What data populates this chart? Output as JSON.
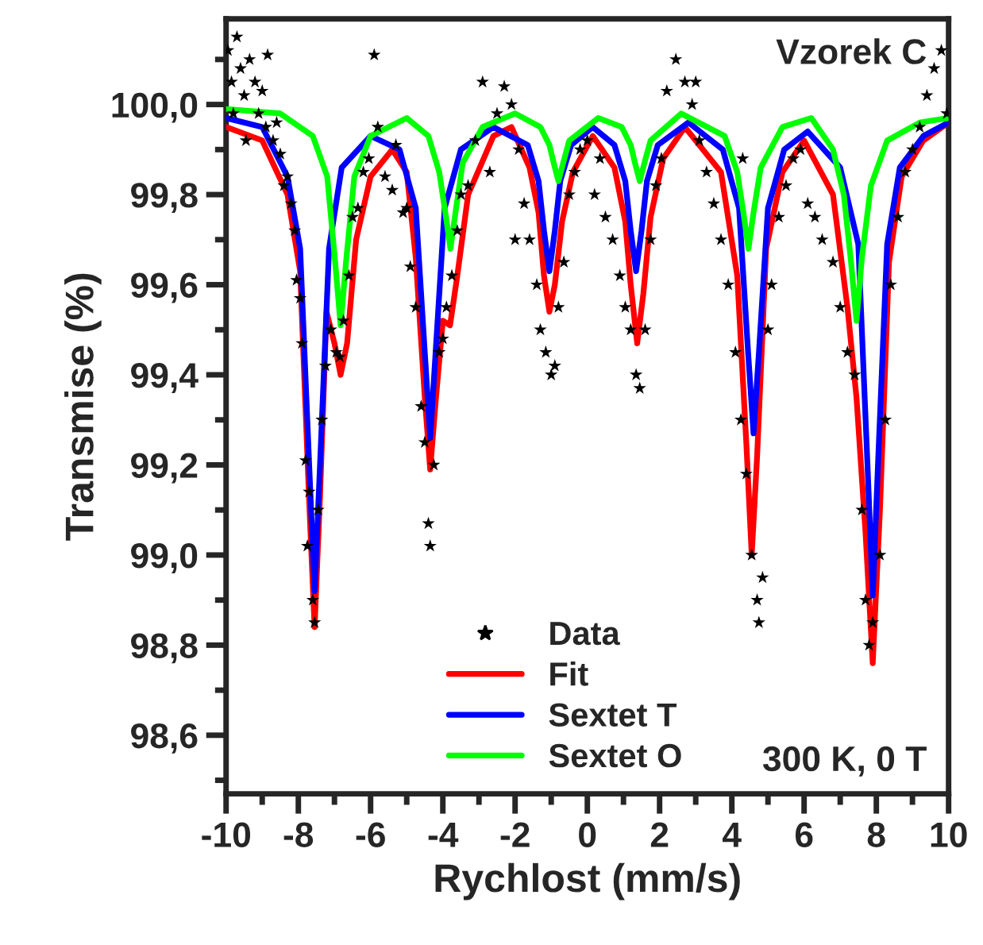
{
  "chart_data": {
    "type": "line",
    "xlabel": "Rychlost (mm/s)",
    "ylabel": "Transmise (%)",
    "annotations": [
      "Vzorek C",
      "300 K, 0 T"
    ],
    "xlim": [
      -10,
      10
    ],
    "xticks": [
      -10,
      {
        "value": -9,
        "label": null
      },
      -8,
      {
        "value": -7,
        "label": null
      },
      -6,
      {
        "value": -5,
        "label": null
      },
      -4,
      {
        "value": -3,
        "label": null
      },
      -2,
      {
        "value": -1,
        "label": null
      },
      0,
      {
        "value": 1,
        "label": null
      },
      2,
      {
        "value": 3,
        "label": null
      },
      4,
      {
        "value": 5,
        "label": null
      },
      6,
      {
        "value": 7,
        "label": null
      },
      8,
      {
        "value": 9,
        "label": null
      },
      10
    ],
    "ylim": [
      98.47,
      100.19
    ],
    "yticks": [
      {
        "value": 98.5,
        "label": null
      },
      {
        "value": 98.6,
        "label": "98,6"
      },
      {
        "value": 98.7,
        "label": null
      },
      {
        "value": 98.8,
        "label": "98,8"
      },
      {
        "value": 98.9,
        "label": null
      },
      {
        "value": 99.0,
        "label": "99,0"
      },
      {
        "value": 99.1,
        "label": null
      },
      {
        "value": 99.2,
        "label": "99,2"
      },
      {
        "value": 99.3,
        "label": null
      },
      {
        "value": 99.4,
        "label": "99,4"
      },
      {
        "value": 99.5,
        "label": null
      },
      {
        "value": 99.6,
        "label": "99,6"
      },
      {
        "value": 99.7,
        "label": null
      },
      {
        "value": 99.8,
        "label": "99,8"
      },
      {
        "value": 99.9,
        "label": null
      },
      {
        "value": 100.0,
        "label": "100,0"
      },
      {
        "value": 100.1,
        "label": null
      }
    ],
    "grid": false,
    "legend": "bottom",
    "series": [
      {
        "name": "Data",
        "type": "scatter",
        "marker": "star",
        "color": "#000000",
        "x": [
          -9.95,
          -9.85,
          -9.8,
          -9.7,
          -9.6,
          -9.5,
          -9.45,
          -9.35,
          -9.2,
          -9.1,
          -9.0,
          -8.9,
          -8.85,
          -8.7,
          -8.6,
          -8.5,
          -8.4,
          -8.3,
          -8.2,
          -8.1,
          -8.05,
          -7.95,
          -7.9,
          -7.8,
          -7.75,
          -7.7,
          -7.6,
          -7.55,
          -7.45,
          -7.35,
          -7.25,
          -7.1,
          -6.95,
          -6.85,
          -6.75,
          -6.6,
          -6.5,
          -6.35,
          -6.2,
          -6.05,
          -5.9,
          -5.8,
          -5.6,
          -5.4,
          -5.3,
          -5.1,
          -5.0,
          -4.9,
          -4.75,
          -4.6,
          -4.5,
          -4.4,
          -4.35,
          -4.25,
          -4.1,
          -4.0,
          -3.9,
          -3.75,
          -3.6,
          -3.5,
          -3.3,
          -3.1,
          -2.9,
          -2.7,
          -2.5,
          -2.3,
          -2.1,
          -2.0,
          -1.9,
          -1.75,
          -1.6,
          -1.4,
          -1.3,
          -1.15,
          -1.0,
          -0.9,
          -0.8,
          -0.65,
          -0.5,
          -0.35,
          -0.2,
          0.0,
          0.2,
          0.35,
          0.5,
          0.7,
          0.9,
          1.05,
          1.2,
          1.35,
          1.45,
          1.6,
          1.75,
          1.9,
          2.05,
          2.2,
          2.45,
          2.7,
          2.9,
          3.0,
          3.1,
          3.3,
          3.5,
          3.7,
          3.9,
          4.1,
          4.25,
          4.3,
          4.4,
          4.55,
          4.7,
          4.75,
          4.85,
          5.0,
          5.1,
          5.3,
          5.5,
          5.7,
          5.9,
          6.1,
          6.3,
          6.5,
          6.8,
          7.0,
          7.2,
          7.4,
          7.6,
          7.7,
          7.8,
          7.9,
          8.1,
          8.25,
          8.4,
          8.6,
          8.8,
          9.0,
          9.2,
          9.4,
          9.6,
          9.8,
          9.95
        ],
        "values": [
          100.12,
          100.05,
          99.98,
          100.15,
          100.08,
          100.02,
          99.92,
          100.1,
          100.05,
          99.98,
          100.03,
          99.95,
          100.11,
          99.92,
          99.96,
          99.89,
          99.82,
          99.84,
          99.78,
          99.72,
          99.61,
          99.57,
          99.47,
          99.21,
          99.02,
          99.14,
          98.9,
          98.85,
          99.1,
          99.3,
          99.42,
          99.5,
          99.45,
          99.44,
          99.52,
          99.62,
          99.75,
          99.77,
          99.85,
          99.88,
          100.11,
          99.95,
          99.84,
          99.81,
          99.91,
          99.76,
          99.77,
          99.64,
          99.55,
          99.33,
          99.25,
          99.07,
          99.02,
          99.2,
          99.45,
          99.48,
          99.55,
          99.62,
          99.72,
          99.8,
          99.82,
          99.92,
          100.05,
          99.85,
          99.98,
          100.04,
          100.0,
          99.7,
          99.9,
          99.78,
          99.7,
          99.6,
          99.5,
          99.45,
          99.4,
          99.42,
          99.55,
          99.65,
          99.8,
          99.85,
          99.9,
          99.92,
          99.8,
          99.88,
          99.75,
          99.7,
          99.62,
          99.55,
          99.5,
          99.4,
          99.37,
          99.5,
          99.7,
          99.82,
          99.88,
          100.03,
          100.1,
          100.05,
          100.0,
          100.05,
          99.92,
          99.85,
          99.78,
          99.7,
          99.6,
          99.45,
          99.3,
          99.88,
          99.18,
          99.0,
          98.9,
          98.85,
          98.95,
          99.5,
          99.6,
          99.75,
          99.82,
          99.88,
          99.9,
          99.78,
          99.75,
          99.7,
          99.65,
          99.55,
          99.45,
          99.4,
          99.1,
          98.9,
          98.8,
          98.85,
          99.0,
          99.3,
          99.6,
          99.75,
          99.85,
          99.9,
          99.95,
          100.02,
          100.08,
          100.12,
          99.98
        ]
      },
      {
        "name": "Fit",
        "marker": "none",
        "color": "#ff0000",
        "x": [
          -10,
          -9,
          -8.3,
          -7.95,
          -7.7,
          -7.55,
          -7.4,
          -7.22,
          -7.0,
          -6.83,
          -6.65,
          -6.4,
          -6.0,
          -5.4,
          -5.0,
          -4.75,
          -4.5,
          -4.35,
          -4.2,
          -4.0,
          -3.8,
          -3.6,
          -3.3,
          -2.6,
          -2.1,
          -1.6,
          -1.35,
          -1.2,
          -1.05,
          -0.9,
          -0.7,
          -0.4,
          0.15,
          0.75,
          1.05,
          1.2,
          1.38,
          1.55,
          1.75,
          2.1,
          2.7,
          3.7,
          4.15,
          4.4,
          4.55,
          4.7,
          4.95,
          5.4,
          6.0,
          6.8,
          7.2,
          7.45,
          7.7,
          7.9,
          8.1,
          8.35,
          8.7,
          9.3,
          10
        ],
        "values": [
          99.95,
          99.92,
          99.8,
          99.63,
          99.12,
          98.84,
          99.13,
          99.54,
          99.47,
          99.4,
          99.47,
          99.7,
          99.84,
          99.9,
          99.85,
          99.66,
          99.35,
          99.19,
          99.34,
          99.52,
          99.51,
          99.62,
          99.8,
          99.93,
          99.95,
          99.86,
          99.76,
          99.62,
          99.54,
          99.6,
          99.74,
          99.85,
          99.93,
          99.86,
          99.74,
          99.6,
          99.47,
          99.58,
          99.75,
          99.88,
          99.95,
          99.85,
          99.62,
          99.25,
          99.0,
          99.22,
          99.68,
          99.85,
          99.92,
          99.8,
          99.55,
          99.35,
          99.05,
          98.76,
          99.1,
          99.65,
          99.84,
          99.92,
          99.96
        ]
      },
      {
        "name": "Sextet T",
        "marker": "none",
        "color": "#0000ff",
        "x": [
          -10,
          -9,
          -8.3,
          -7.95,
          -7.7,
          -7.55,
          -7.4,
          -7.15,
          -6.8,
          -6.0,
          -5.2,
          -4.75,
          -4.5,
          -4.35,
          -4.2,
          -3.95,
          -3.5,
          -2.6,
          -1.65,
          -1.35,
          -1.2,
          -1.05,
          -0.9,
          -0.75,
          -0.45,
          0.15,
          0.75,
          1.05,
          1.2,
          1.35,
          1.5,
          1.65,
          1.95,
          2.8,
          3.75,
          4.2,
          4.45,
          4.6,
          4.75,
          5.0,
          5.45,
          6.1,
          7.0,
          7.5,
          7.75,
          7.9,
          8.05,
          8.3,
          8.65,
          9.3,
          10
        ],
        "values": [
          99.97,
          99.95,
          99.84,
          99.68,
          99.2,
          98.92,
          99.2,
          99.68,
          99.86,
          99.93,
          99.9,
          99.77,
          99.45,
          99.26,
          99.45,
          99.77,
          99.9,
          99.95,
          99.91,
          99.83,
          99.72,
          99.63,
          99.72,
          99.83,
          99.91,
          99.95,
          99.91,
          99.83,
          99.72,
          99.63,
          99.72,
          99.83,
          99.91,
          99.96,
          99.9,
          99.77,
          99.45,
          99.27,
          99.45,
          99.77,
          99.9,
          99.94,
          99.86,
          99.69,
          99.21,
          98.91,
          99.21,
          99.69,
          99.86,
          99.93,
          99.96
        ]
      },
      {
        "name": "Sextet O",
        "marker": "none",
        "color": "#00ff00",
        "x": [
          -10,
          -8.5,
          -7.6,
          -7.2,
          -6.98,
          -6.83,
          -6.68,
          -6.45,
          -6.0,
          -5.0,
          -4.4,
          -4.1,
          -3.93,
          -3.79,
          -3.65,
          -3.45,
          -2.9,
          -2.0,
          -1.3,
          -1.05,
          -0.93,
          -0.8,
          -0.67,
          -0.5,
          0.3,
          0.95,
          1.2,
          1.32,
          1.45,
          1.58,
          1.75,
          2.6,
          3.8,
          4.15,
          4.32,
          4.46,
          4.6,
          4.8,
          5.4,
          6.2,
          6.8,
          7.1,
          7.3,
          7.45,
          7.6,
          7.85,
          8.3,
          9.2,
          10
        ],
        "values": [
          99.99,
          99.98,
          99.93,
          99.84,
          99.65,
          99.51,
          99.65,
          99.84,
          99.93,
          99.97,
          99.93,
          99.85,
          99.76,
          99.68,
          99.76,
          99.87,
          99.95,
          99.98,
          99.95,
          99.91,
          99.87,
          99.83,
          99.87,
          99.92,
          99.97,
          99.95,
          99.91,
          99.87,
          99.83,
          99.87,
          99.92,
          99.98,
          99.93,
          99.85,
          99.76,
          99.68,
          99.76,
          99.86,
          99.95,
          99.97,
          99.9,
          99.8,
          99.65,
          99.52,
          99.66,
          99.82,
          99.92,
          99.96,
          99.97
        ]
      }
    ]
  }
}
